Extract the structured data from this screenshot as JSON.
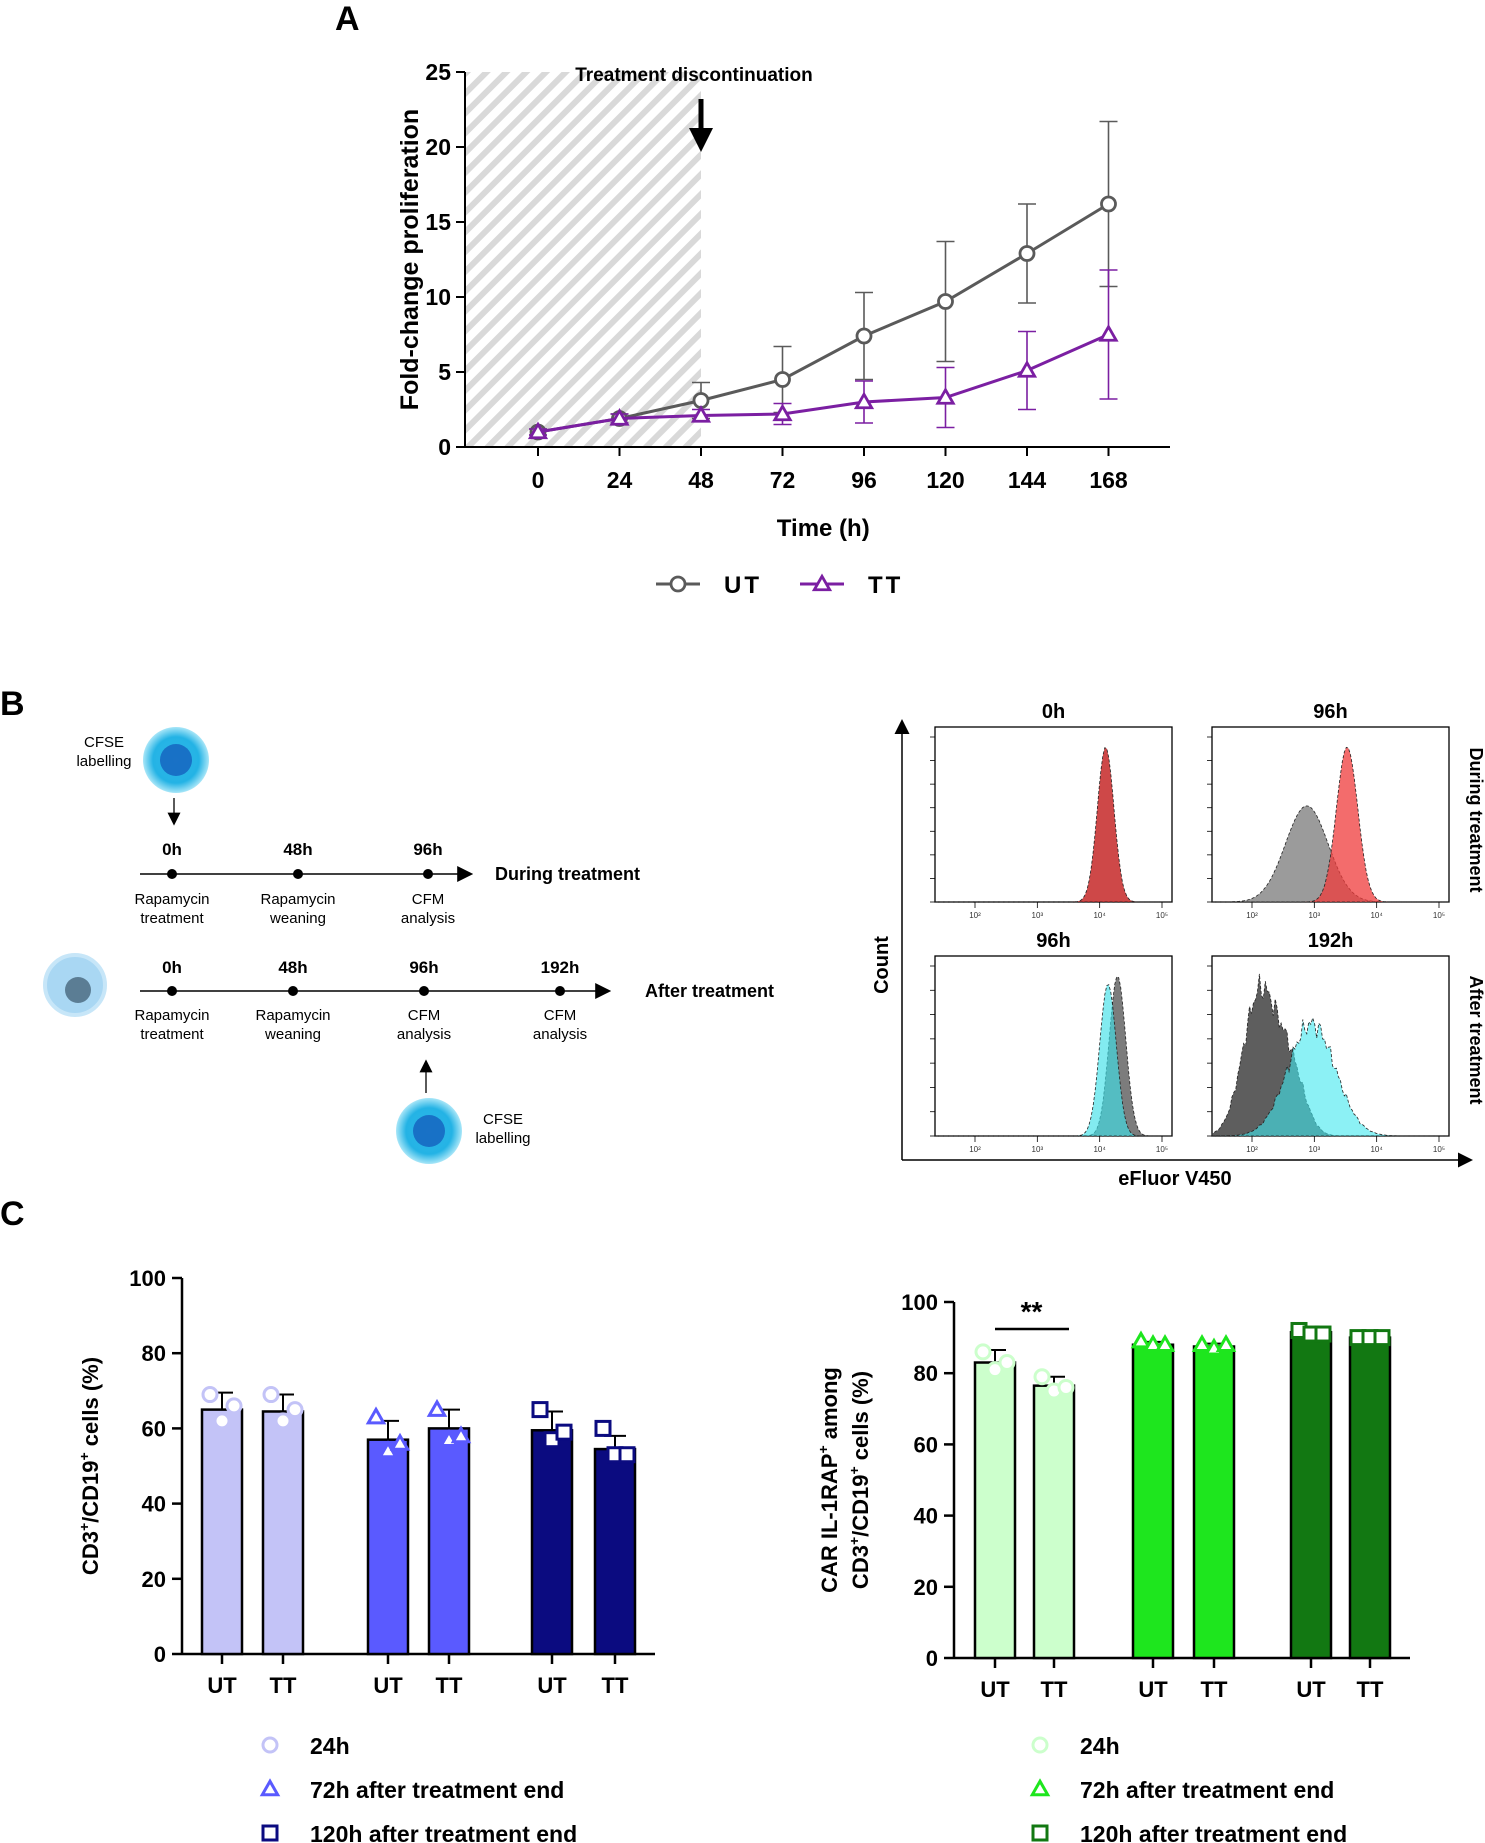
{
  "panel_labels": {
    "a": "A",
    "b": "B",
    "c": "C"
  },
  "panel_a": {
    "annotation": "Treatment discontinuation",
    "chart_data": {
      "type": "line",
      "xlabel": "Time (h)",
      "ylabel": "Fold-change proliferation",
      "x": [
        0,
        24,
        48,
        72,
        96,
        120,
        144,
        168
      ],
      "x_ticks": [
        "0",
        "24",
        "48",
        "72",
        "96",
        "120",
        "144",
        "168"
      ],
      "y_ticks": [
        "0",
        "5",
        "10",
        "15",
        "20",
        "25"
      ],
      "ylim": [
        0,
        25
      ],
      "shaded_region_x": [
        0,
        48
      ],
      "series": [
        {
          "name": "UT",
          "color": "#5a5a5a",
          "marker": "circle",
          "values": [
            1.0,
            1.9,
            3.1,
            4.5,
            7.4,
            9.7,
            12.9,
            16.2
          ],
          "error": [
            0.2,
            0.3,
            1.2,
            2.2,
            2.9,
            4.0,
            3.3,
            5.5
          ]
        },
        {
          "name": "TT",
          "color": "#7b1fa2",
          "marker": "triangle",
          "values": [
            1.0,
            1.9,
            2.1,
            2.2,
            3.0,
            3.3,
            5.1,
            7.5
          ],
          "error": [
            0.2,
            0.3,
            0.4,
            0.7,
            1.4,
            2.0,
            2.6,
            4.3
          ]
        }
      ]
    }
  },
  "panel_b": {
    "cell_top_label": "CFSE\nlabelling",
    "cell_bottom_label": "CFSE\nlabelling",
    "row1_label": "During treatment",
    "row2_label": "After treatment",
    "row1_points": [
      {
        "time": "0h",
        "desc": "Rapamycin\ntreatment"
      },
      {
        "time": "48h",
        "desc": "Rapamycin\nweaning"
      },
      {
        "time": "96h",
        "desc": "CFM\nanalysis"
      }
    ],
    "row2_points": [
      {
        "time": "0h",
        "desc": "Rapamycin\ntreatment"
      },
      {
        "time": "48h",
        "desc": "Rapamycin\nweaning"
      },
      {
        "time": "96h",
        "desc": "CFM\nanalysis"
      },
      {
        "time": "192h",
        "desc": "CFM\nanalysis"
      }
    ],
    "flow": {
      "ylabel": "Count",
      "xlabel": "eFluor V450",
      "right_label_top": "During treatment",
      "right_label_bottom": "After treatment",
      "plots": [
        {
          "title": "0h"
        },
        {
          "title": "96h"
        },
        {
          "title": "96h"
        },
        {
          "title": "192h"
        }
      ]
    }
  },
  "panel_c": {
    "chart_data": [
      {
        "type": "bar",
        "ylabel_main": "CD3",
        "ylabel_sup1": "+",
        "ylabel_mid": "/CD19",
        "ylabel_sup2": "+",
        "ylabel_end": " cells (%)",
        "ylim": [
          0,
          100
        ],
        "y_ticks": [
          "0",
          "20",
          "40",
          "60",
          "80",
          "100"
        ],
        "categories": [
          "UT",
          "TT",
          "UT",
          "TT",
          "UT",
          "TT"
        ],
        "groups": [
          "24h",
          "72h after treatment end",
          "120h after treatment end"
        ],
        "colors": [
          "#c3c3f7",
          "#5a5aff",
          "#0b0b80"
        ],
        "values": [
          65,
          64.5,
          57,
          60,
          59.5,
          54.5
        ],
        "errors": [
          4.5,
          4.5,
          5,
          5,
          5,
          3.5
        ],
        "points": [
          [
            69,
            62,
            66
          ],
          [
            69,
            62,
            65
          ],
          [
            63,
            54,
            56
          ],
          [
            65,
            57,
            58
          ],
          [
            65,
            57,
            59
          ],
          [
            60,
            53,
            53
          ]
        ]
      },
      {
        "type": "bar",
        "ylabel_line1_main": "CAR IL-1RAP",
        "ylabel_line1_sup": "+",
        "ylabel_line1_end": " among",
        "ylabel_line2_main": "CD3",
        "ylabel_line2_sup1": "+",
        "ylabel_line2_mid": "/CD19",
        "ylabel_line2_sup2": "+",
        "ylabel_line2_end": " cells (%)",
        "ylim": [
          0,
          100
        ],
        "y_ticks": [
          "0",
          "20",
          "40",
          "60",
          "80",
          "100"
        ],
        "categories": [
          "UT",
          "TT",
          "UT",
          "TT",
          "UT",
          "TT"
        ],
        "groups": [
          "24h",
          "72h after treatment end",
          "120h after treatment end"
        ],
        "colors": [
          "#ccffcc",
          "#1ee61e",
          "#127812"
        ],
        "values": [
          83,
          76.5,
          88,
          87.5,
          91.5,
          90
        ],
        "errors": [
          3.5,
          2.5,
          0.8,
          0.8,
          0.8,
          0.5
        ],
        "points": [
          [
            86,
            81,
            83
          ],
          [
            79,
            75,
            76
          ],
          [
            89,
            88,
            88
          ],
          [
            88,
            87,
            88
          ],
          [
            92,
            91,
            91
          ],
          [
            90,
            90,
            90
          ]
        ],
        "significance": "**"
      }
    ],
    "legend_left": [
      "24h",
      "72h after treatment end",
      "120h after treatment end"
    ],
    "legend_right": [
      "24h",
      "72h after treatment end",
      "120h after treatment end"
    ]
  }
}
